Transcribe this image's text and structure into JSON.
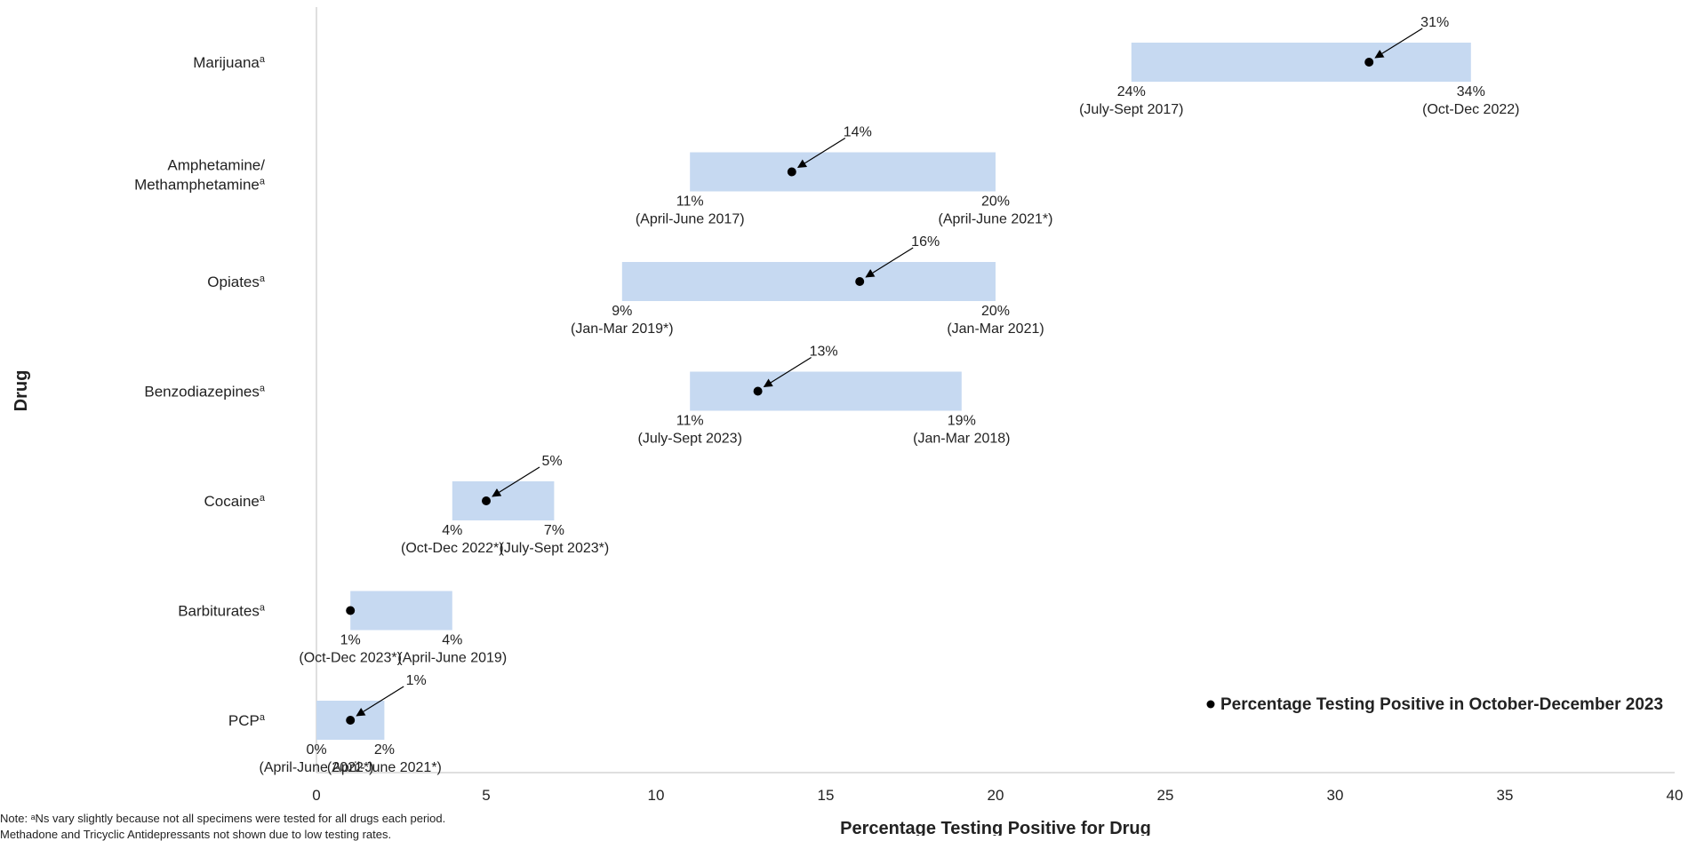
{
  "chart_data": {
    "type": "range-bar",
    "ylabel": "Drug",
    "xlabel": "Percentage Testing Positive for Drug",
    "xlim": [
      0,
      40
    ],
    "xticks": [
      0,
      5,
      10,
      15,
      20,
      25,
      30,
      35,
      40
    ],
    "legend": {
      "label": "Percentage Testing Positive in October-December 2023",
      "position": "bottom-right"
    },
    "bar_color": "#c6d9f1",
    "series": [
      {
        "name": "Marijuana",
        "sup": "a",
        "min": 24,
        "max": 34,
        "current": 31,
        "min_label": "24%",
        "min_period": "(July-Sept 2017)",
        "max_label": "34%",
        "max_period": "(Oct-Dec 2022)",
        "current_label": "31%"
      },
      {
        "name": "Amphetamine/",
        "name2": "Methamphetamine",
        "sup": "a",
        "min": 11,
        "max": 20,
        "current": 14,
        "min_label": "11%",
        "min_period": "(April-June 2017)",
        "max_label": "20%",
        "max_period": "(April-June 2021*)",
        "current_label": "14%"
      },
      {
        "name": "Opiates",
        "sup": "a",
        "min": 9,
        "max": 20,
        "current": 16,
        "min_label": "9%",
        "min_period": "(Jan-Mar 2019*)",
        "max_label": "20%",
        "max_period": "(Jan-Mar 2021)",
        "current_label": "16%"
      },
      {
        "name": "Benzodiazepines",
        "sup": "a",
        "min": 11,
        "max": 19,
        "current": 13,
        "min_label": "11%",
        "min_period": "(July-Sept 2023)",
        "max_label": "19%",
        "max_period": "(Jan-Mar 2018)",
        "current_label": "13%"
      },
      {
        "name": "Cocaine",
        "sup": "a",
        "min": 4,
        "max": 7,
        "current": 5,
        "min_label": "4%",
        "min_period": "(Oct-Dec 2022*)",
        "max_label": "7%",
        "max_period": "(July-Sept 2023*)",
        "current_label": "5%"
      },
      {
        "name": "Barbiturates",
        "sup": "a",
        "min": 1,
        "max": 4,
        "current": 1,
        "min_label": "1%",
        "min_period": "(Oct-Dec 2023*)",
        "max_label": "4%",
        "max_period": "(April-June 2019)",
        "current_label": ""
      },
      {
        "name": "PCP",
        "sup": "a",
        "min": 0,
        "max": 2,
        "current": 1,
        "min_label": "0%",
        "min_period": "(April-June 2022*)",
        "max_label": "2%",
        "max_period": "(April-June 2021*)",
        "current_label": "1%"
      }
    ]
  },
  "notes": {
    "line1": "Note: ᵃNs vary slightly because not all specimens were tested for all drugs each period.",
    "line2": "Methadone and Tricyclic Antidepressants not shown due to low testing rates."
  }
}
